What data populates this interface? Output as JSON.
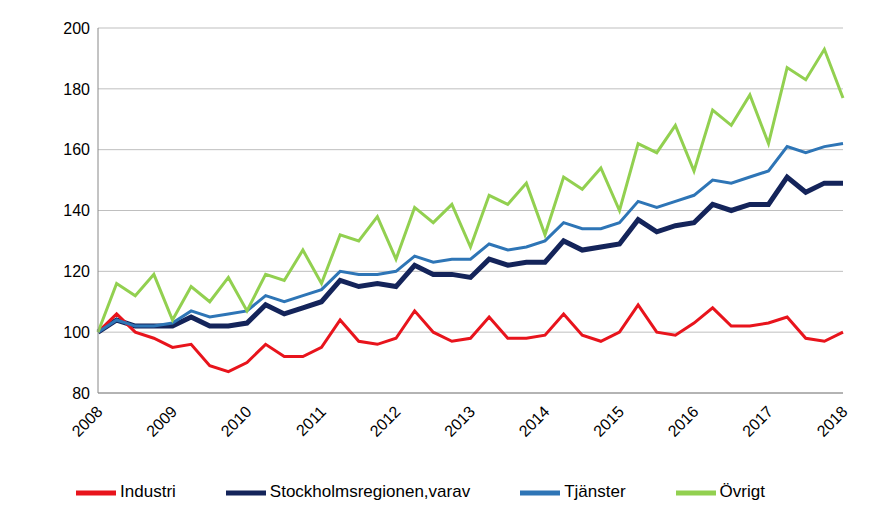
{
  "chart_data": {
    "type": "line",
    "categories": [
      "2008",
      null,
      null,
      null,
      "2009",
      null,
      null,
      null,
      "2010",
      null,
      null,
      null,
      "2011",
      null,
      null,
      null,
      "2012",
      null,
      null,
      null,
      "2013",
      null,
      null,
      null,
      "2014",
      null,
      null,
      null,
      "2015",
      null,
      null,
      null,
      "2016",
      null,
      null,
      null,
      "2017",
      null,
      null,
      null,
      "2018"
    ],
    "series": [
      {
        "name": "Stockholmsregionen,varav",
        "color": "#14245a",
        "values": [
          100,
          104,
          102,
          102,
          102,
          105,
          102,
          102,
          103,
          109,
          106,
          108,
          110,
          117,
          115,
          116,
          115,
          122,
          119,
          119,
          118,
          124,
          122,
          123,
          123,
          130,
          127,
          128,
          129,
          137,
          133,
          135,
          136,
          142,
          140,
          142,
          142,
          151,
          146,
          149,
          149
        ]
      },
      {
        "name": "Industri",
        "color": "#e8141c",
        "values": [
          100,
          106,
          100,
          98,
          95,
          96,
          89,
          87,
          90,
          96,
          92,
          92,
          95,
          104,
          97,
          96,
          98,
          107,
          100,
          97,
          98,
          105,
          98,
          98,
          99,
          106,
          99,
          97,
          100,
          109,
          100,
          99,
          103,
          108,
          102,
          102,
          103,
          105,
          98,
          97,
          100
        ]
      },
      {
        "name": "Tjänster",
        "color": "#2e75b6",
        "values": [
          100,
          104,
          102,
          102,
          103,
          107,
          105,
          106,
          107,
          112,
          110,
          112,
          114,
          120,
          119,
          119,
          120,
          125,
          123,
          124,
          124,
          129,
          127,
          128,
          130,
          136,
          134,
          134,
          136,
          143,
          141,
          143,
          145,
          150,
          149,
          151,
          153,
          161,
          159,
          161,
          162
        ]
      },
      {
        "name": "Övrigt",
        "color": "#92d050",
        "values": [
          100,
          116,
          112,
          119,
          104,
          115,
          110,
          118,
          107,
          119,
          117,
          127,
          116,
          132,
          130,
          138,
          124,
          141,
          136,
          142,
          128,
          145,
          142,
          149,
          132,
          151,
          147,
          154,
          140,
          162,
          159,
          168,
          153,
          173,
          168,
          178,
          162,
          187,
          183,
          193,
          177
        ]
      }
    ],
    "ylim": [
      80,
      200
    ],
    "yticks": [
      80,
      100,
      120,
      140,
      160,
      180,
      200
    ],
    "grid": true,
    "legend": "bottom"
  }
}
